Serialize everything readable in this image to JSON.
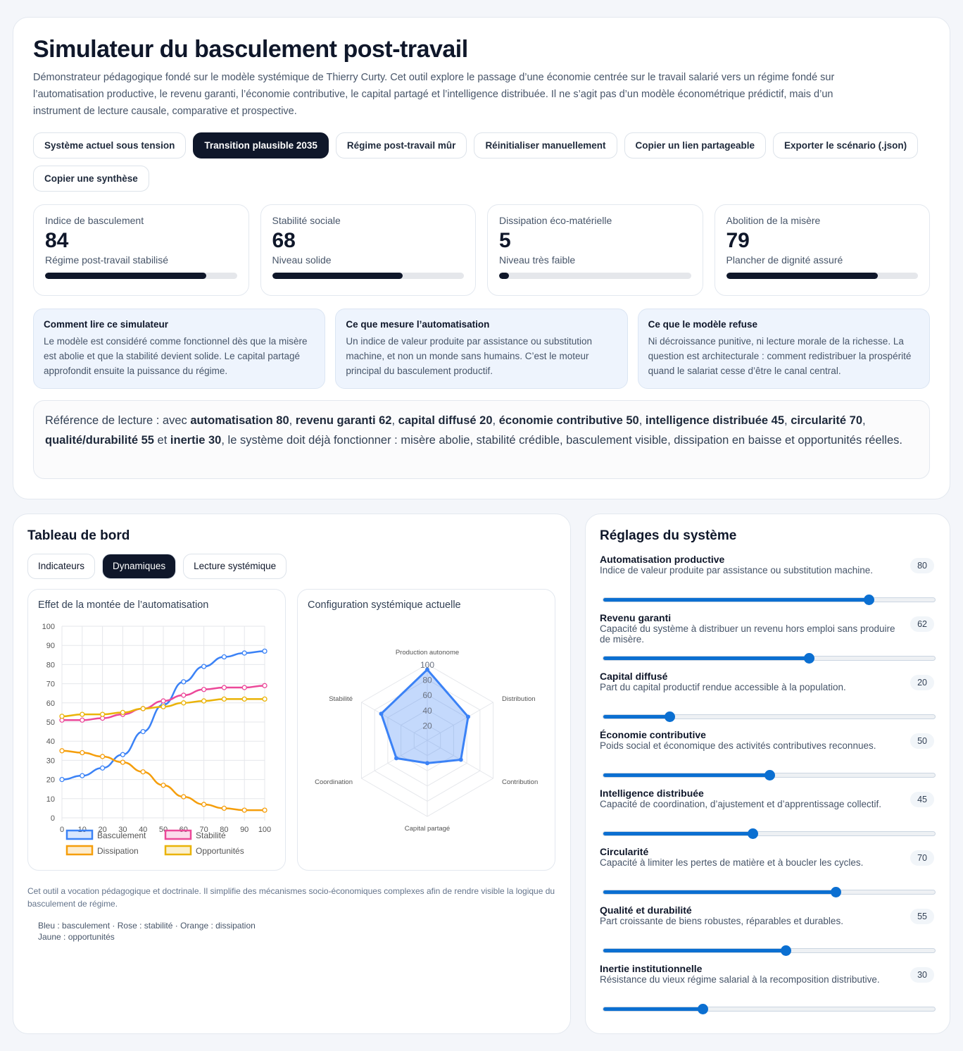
{
  "header": {
    "title": "Simulateur du basculement post-travail",
    "intro": "Démonstrateur pédagogique fondé sur le modèle systémique de Thierry Curty. Cet outil explore le passage d’une économie centrée sur le travail salarié vers un régime fondé sur l’automatisation productive, le revenu garanti, l’économie contributive, le capital partagé et l’intelligence distribuée. Il ne s’agit pas d’un modèle économétrique prédictif, mais d’un instrument de lecture causale, comparative et prospective."
  },
  "buttons": [
    "Système actuel sous tension",
    "Transition plausible 2035",
    "Régime post-travail mûr",
    "Réinitialiser manuellement",
    "Copier un lien partageable",
    "Exporter le scénario (.json)",
    "Copier une synthèse"
  ],
  "kpis": [
    {
      "label": "Indice de basculement",
      "value": "84",
      "status": "Régime post-travail stabilisé",
      "progress": 84
    },
    {
      "label": "Stabilité sociale",
      "value": "68",
      "status": "Niveau solide",
      "progress": 68
    },
    {
      "label": "Dissipation éco-matérielle",
      "value": "5",
      "status": "Niveau très faible",
      "progress": 5
    },
    {
      "label": "Abolition de la misère",
      "value": "79",
      "status": "Plancher de dignité assuré",
      "progress": 79
    }
  ],
  "notes": [
    {
      "title": "Comment lire ce simulateur",
      "text": "Le modèle est considéré comme fonctionnel dès que la misère est abolie et que la stabilité devient solide. Le capital partagé approfondit ensuite la puissance du régime."
    },
    {
      "title": "Ce que mesure l’automatisation",
      "text": "Un indice de valeur produite par assistance ou substitution machine, et non un monde sans humains. C’est le moteur principal du basculement productif."
    },
    {
      "title": "Ce que le modèle refuse",
      "text": "Ni décroissance punitive, ni lecture morale de la richesse. La question est architecturale : comment redistribuer la prospérité quand le salariat cesse d’être le canal central."
    }
  ],
  "reference": {
    "p0": "Référence de lecture : avec ",
    "b0": "automatisation 80",
    ",": ", ",
    "b1": "revenu garanti 62",
    "b2": "capital diffusé 20",
    "b3": "économie contributive 50",
    "b4": "intelligence distribuée 45",
    "b5": "circularité 70",
    "b6": "qualité/durabilité 55",
    "et": " et ",
    "b7": "inertie 30",
    "end": ", le système doit déjà fonctionner : misère abolie, stabilité crédible, basculement visible, dissipation en baisse et opportunités réelles."
  },
  "dashboard": {
    "title": "Tableau de bord",
    "tabs": [
      "Indicateurs",
      "Dynamiques",
      "Lecture systémique"
    ],
    "footer": "Cet outil a vocation pédagogique et doctrinale. Il simplifie des mécanismes socio-économiques complexes afin de rendre visible la logique du basculement de régime.",
    "legend_note1": "Bleu : basculement · Rose : stabilité · Orange : dissipation",
    "legend_note2": "Jaune : opportunités"
  },
  "chart_data": [
    {
      "type": "line",
      "title": "Effet de la montée de l’automatisation",
      "x": [
        0,
        10,
        20,
        30,
        40,
        50,
        60,
        70,
        80,
        90,
        100
      ],
      "ylim": [
        0,
        100
      ],
      "yticks": [
        0,
        10,
        20,
        30,
        40,
        50,
        60,
        70,
        80,
        90,
        100
      ],
      "series": [
        {
          "name": "Basculement",
          "color": "#3b82f6",
          "values": [
            20,
            22,
            26,
            33,
            45,
            59,
            71,
            79,
            84,
            86,
            87
          ]
        },
        {
          "name": "Stabilité",
          "color": "#ec4899",
          "values": [
            51,
            51,
            52,
            54,
            57,
            61,
            64,
            67,
            68,
            68,
            69
          ]
        },
        {
          "name": "Dissipation",
          "color": "#f59e0b",
          "values": [
            35,
            34,
            32,
            29,
            24,
            17,
            11,
            7,
            5,
            4,
            4
          ]
        },
        {
          "name": "Opportunités",
          "color": "#eab308",
          "values": [
            53,
            54,
            54,
            55,
            57,
            58,
            60,
            61,
            62,
            62,
            62
          ]
        }
      ]
    },
    {
      "type": "radar",
      "title": "Configuration systémique actuelle",
      "categories": [
        "Production autonome",
        "Distribution",
        "Contribution",
        "Capital partagé",
        "Coordination",
        "Stabilité"
      ],
      "values": [
        93,
        62,
        51,
        30,
        47,
        70
      ],
      "rlim": [
        0,
        100
      ],
      "rticks": [
        20,
        40,
        60,
        80,
        100
      ],
      "color": "#3b82f6"
    }
  ],
  "settings": {
    "title": "Réglages du système",
    "items": [
      {
        "label": "Automatisation productive",
        "desc": "Indice de valeur produite par assistance ou substitution machine.",
        "value": 80
      },
      {
        "label": "Revenu garanti",
        "desc": "Capacité du système à distribuer un revenu hors emploi sans produire de misère.",
        "value": 62
      },
      {
        "label": "Capital diffusé",
        "desc": "Part du capital productif rendue accessible à la population.",
        "value": 20
      },
      {
        "label": "Économie contributive",
        "desc": "Poids social et économique des activités contributives reconnues.",
        "value": 50
      },
      {
        "label": "Intelligence distribuée",
        "desc": "Capacité de coordination, d’ajustement et d’apprentissage collectif.",
        "value": 45
      },
      {
        "label": "Circularité",
        "desc": "Capacité à limiter les pertes de matière et à boucler les cycles.",
        "value": 70
      },
      {
        "label": "Qualité et durabilité",
        "desc": "Part croissante de biens robustes, réparables et durables.",
        "value": 55
      },
      {
        "label": "Inertie institutionnelle",
        "desc": "Résistance du vieux régime salarial à la recomposition distributive.",
        "value": 30
      }
    ]
  }
}
